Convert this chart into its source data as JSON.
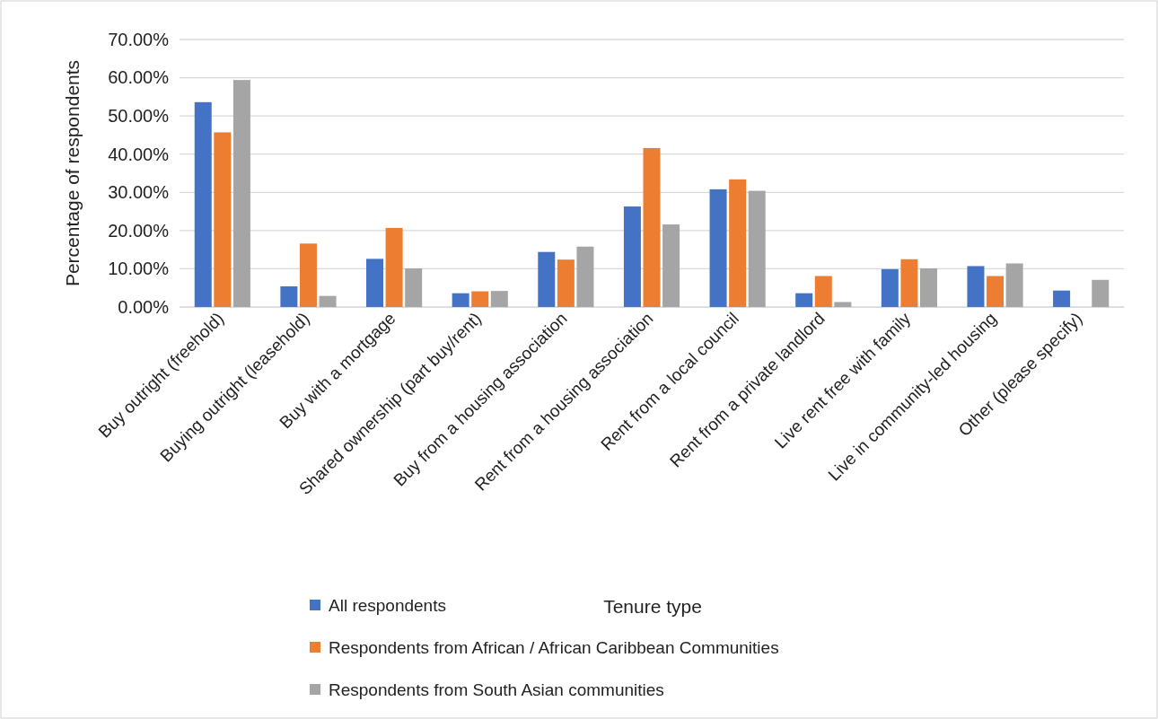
{
  "chart_data": {
    "type": "bar",
    "annotations": [
      "Tenure type"
    ],
    "ylabel": "Percentage of respondents",
    "categories": [
      "Buy outright (freehold)",
      "Buying outright (leasehold)",
      "Buy with a mortgage",
      "Shared ownership (part buy/rent)",
      "Buy from a housing association",
      "Rent from a housing association",
      "Rent from a local council",
      "Rent from a private landlord",
      "Live rent free with family",
      "Live in community-led housing",
      "Other (please specify)"
    ],
    "series": [
      {
        "name": "All respondents",
        "color": "#4472c4",
        "values": [
          53.6,
          5.4,
          12.6,
          3.6,
          14.4,
          26.3,
          30.8,
          3.6,
          9.9,
          10.7,
          4.3
        ]
      },
      {
        "name": "Respondents from African / African Caribbean Communities",
        "color": "#ed7d31",
        "values": [
          45.7,
          16.6,
          20.7,
          4.1,
          12.4,
          41.6,
          33.4,
          8.1,
          12.5,
          8.1,
          0
        ]
      },
      {
        "name": "Respondents from South Asian communities",
        "color": "#a5a5a5",
        "values": [
          59.4,
          2.9,
          10.1,
          4.2,
          15.8,
          21.6,
          30.4,
          1.3,
          10.1,
          11.4,
          7.1
        ]
      }
    ],
    "ylim": [
      0,
      70
    ],
    "yticks": [
      {
        "value": 0,
        "label": "0.00%"
      },
      {
        "value": 10,
        "label": "10.00%"
      },
      {
        "value": 20,
        "label": "20.00%"
      },
      {
        "value": 30,
        "label": "30.00%"
      },
      {
        "value": 40,
        "label": "40.00%"
      },
      {
        "value": 50,
        "label": "50.00%"
      },
      {
        "value": 60,
        "label": "60.00%"
      },
      {
        "value": 70,
        "label": "70.00%"
      }
    ],
    "grid": "y",
    "legend": "bottom"
  }
}
